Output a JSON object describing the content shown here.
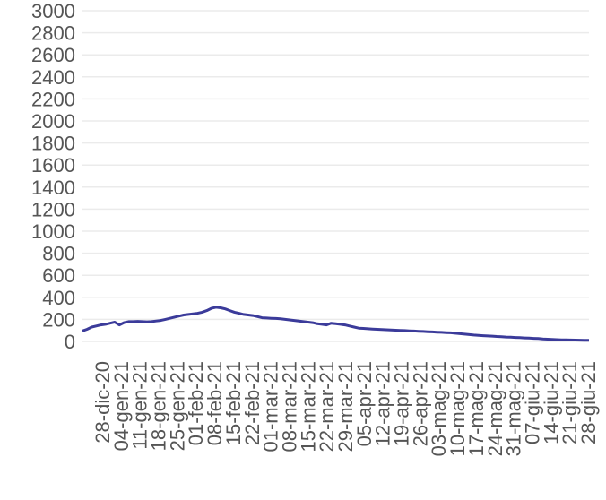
{
  "chart_data": {
    "type": "line",
    "title": "",
    "xlabel": "",
    "ylabel": "",
    "ylim": [
      0,
      3000
    ],
    "y_ticks": [
      "0",
      "200",
      "400",
      "600",
      "800",
      "1000",
      "1200",
      "1400",
      "1600",
      "1800",
      "2000",
      "2200",
      "2400",
      "2600",
      "2800",
      "3000"
    ],
    "x_ticks": [
      "28-dic-20",
      "04-gen-21",
      "11-gen-21",
      "18-gen-21",
      "25-gen-21",
      "01-feb-21",
      "08-feb-21",
      "15-feb-21",
      "22-feb-21",
      "01-mar-21",
      "08-mar-21",
      "15-mar-21",
      "22-mar-21",
      "29-mar-21",
      "05-apr-21",
      "12-apr-21",
      "19-apr-21",
      "26-apr-21",
      "03-mag-21",
      "10-mag-21",
      "17-mag-21",
      "24-mag-21",
      "31-mag-21",
      "07-giu-21",
      "14-giu-21",
      "21-giu-21",
      "28-giu-21"
    ],
    "grid": true,
    "color": "#3b3b9a",
    "series": [
      {
        "values": [
          95,
          110,
          130,
          140,
          150,
          155,
          165,
          175,
          150,
          170,
          180,
          180,
          182,
          180,
          178,
          180,
          185,
          190,
          200,
          210,
          220,
          230,
          240,
          245,
          250,
          255,
          265,
          280,
          300,
          310,
          305,
          295,
          280,
          265,
          255,
          245,
          240,
          235,
          225,
          215,
          212,
          210,
          208,
          205,
          200,
          195,
          190,
          185,
          180,
          175,
          170,
          160,
          155,
          150,
          165,
          160,
          155,
          150,
          140,
          130,
          120,
          118,
          115,
          112,
          110,
          108,
          106,
          104,
          102,
          100,
          98,
          96,
          94,
          92,
          90,
          88,
          86,
          84,
          82,
          80,
          78,
          74,
          70,
          66,
          62,
          58,
          55,
          52,
          50,
          48,
          45,
          43,
          40,
          38,
          36,
          34,
          32,
          30,
          28,
          26,
          22,
          20,
          18,
          16,
          15,
          14,
          13,
          12,
          11,
          10,
          10
        ]
      }
    ]
  }
}
